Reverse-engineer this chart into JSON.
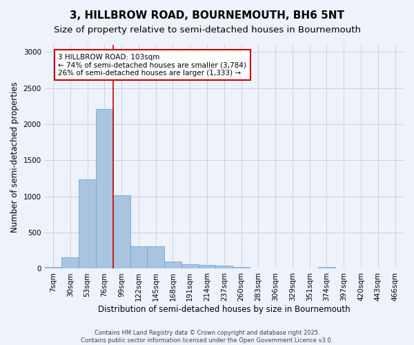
{
  "title": "3, HILLBROW ROAD, BOURNEMOUTH, BH6 5NT",
  "subtitle": "Size of property relative to semi-detached houses in Bournemouth",
  "xlabel": "Distribution of semi-detached houses by size in Bournemouth",
  "ylabel": "Number of semi-detached properties",
  "footer": "Contains HM Land Registry data © Crown copyright and database right 2025.\nContains public sector information licensed under the Open Government Licence v3.0.",
  "categories": [
    "7sqm",
    "30sqm",
    "53sqm",
    "76sqm",
    "99sqm",
    "122sqm",
    "145sqm",
    "168sqm",
    "191sqm",
    "214sqm",
    "237sqm",
    "260sqm",
    "283sqm",
    "306sqm",
    "329sqm",
    "351sqm",
    "374sqm",
    "397sqm",
    "420sqm",
    "443sqm",
    "466sqm"
  ],
  "values": [
    20,
    160,
    1240,
    2210,
    1020,
    310,
    310,
    100,
    60,
    55,
    40,
    25,
    0,
    0,
    0,
    0,
    25,
    0,
    0,
    0,
    0
  ],
  "bar_color": "#aac4e0",
  "bar_edge_color": "#5a9fd4",
  "highlight_line_index": 4,
  "highlight_line_color": "#cc0000",
  "annotation_text": "3 HILLBROW ROAD: 103sqm\n← 74% of semi-detached houses are smaller (3,784)\n26% of semi-detached houses are larger (1,333) →",
  "annotation_box_color": "#cc0000",
  "annotation_text_color": "#000000",
  "ylim": [
    0,
    3100
  ],
  "yticks": [
    0,
    500,
    1000,
    1500,
    2000,
    2500,
    3000
  ],
  "bg_color": "#eef2fb",
  "plot_bg_color": "#eef2fb",
  "grid_color": "#c8d0e0",
  "title_fontsize": 11,
  "subtitle_fontsize": 9.5,
  "axis_label_fontsize": 8.5,
  "tick_fontsize": 7.5,
  "footer_fontsize": 6
}
